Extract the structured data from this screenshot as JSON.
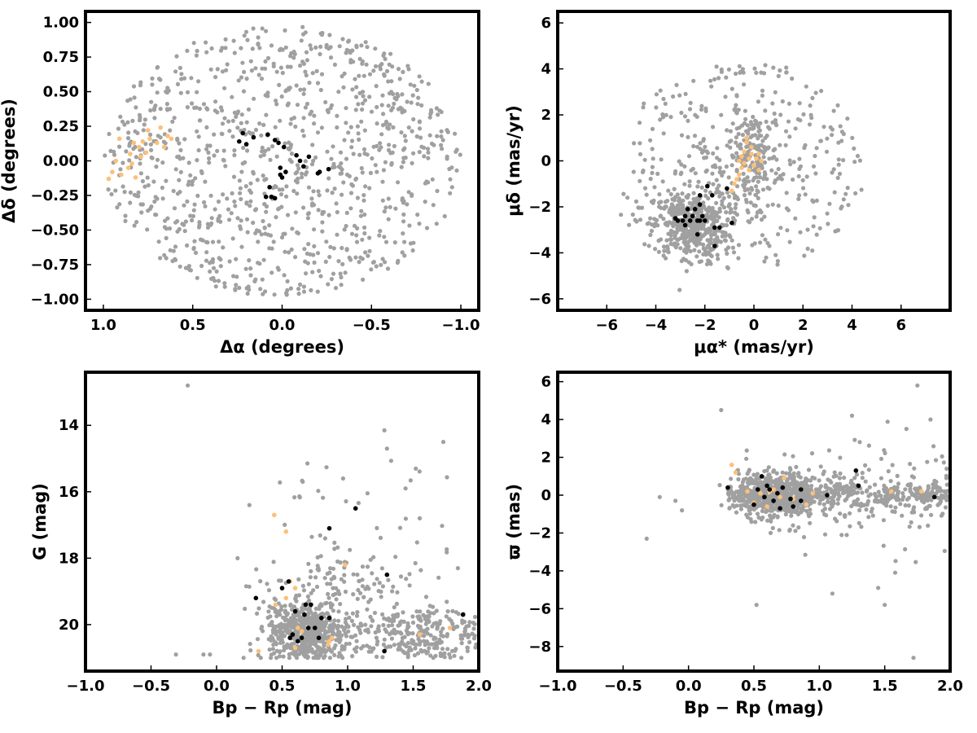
{
  "colors": {
    "field": "#a0a0a0",
    "orange": "#fcc07a",
    "black": "#000000"
  },
  "chart_data": [
    {
      "type": "scatter",
      "xlabel": "Δα (degrees)",
      "ylabel": "Δδ (degrees)",
      "xlim": [
        1.1,
        -1.1
      ],
      "ylim": [
        -1.08,
        1.08
      ],
      "xticks": [
        1.0,
        0.5,
        0.0,
        -0.5,
        -1.0
      ],
      "xtick_labels": [
        "1.0",
        "0.5",
        "0.0",
        "−0.5",
        "−1.0"
      ],
      "yticks": [
        -1.0,
        -0.75,
        -0.5,
        -0.25,
        0.0,
        0.25,
        0.5,
        0.75,
        1.0
      ],
      "ytick_labels": [
        "−1.00",
        "−0.75",
        "−0.50",
        "−0.25",
        "0.00",
        "0.25",
        "0.50",
        "0.75",
        "1.00"
      ],
      "series": [
        {
          "color": "#a0a0a0",
          "description": "field stars: ~1000 points filling a circle of radius 1.0 deg centered at (0,0)",
          "points": []
        },
        {
          "color": "#fcc07a",
          "points": [
            [
              0.97,
              -0.13
            ],
            [
              0.95,
              -0.08
            ],
            [
              0.93,
              0.0
            ],
            [
              0.91,
              0.16
            ],
            [
              0.9,
              -0.1
            ],
            [
              0.86,
              -0.05
            ],
            [
              0.85,
              0.05
            ],
            [
              0.84,
              -0.02
            ],
            [
              0.83,
              0.13
            ],
            [
              0.82,
              -0.12
            ],
            [
              0.8,
              0.1
            ],
            [
              0.79,
              0.03
            ],
            [
              0.78,
              0.14
            ],
            [
              0.76,
              0.06
            ],
            [
              0.75,
              0.22
            ],
            [
              0.74,
              0.16
            ],
            [
              0.7,
              0.13
            ],
            [
              0.68,
              0.24
            ],
            [
              0.66,
              0.1
            ],
            [
              0.64,
              0.18
            ],
            [
              0.62,
              0.16
            ]
          ]
        },
        {
          "color": "#000000",
          "points": [
            [
              0.24,
              0.14
            ],
            [
              0.22,
              0.2
            ],
            [
              0.2,
              0.12
            ],
            [
              0.16,
              0.17
            ],
            [
              0.08,
              0.19
            ],
            [
              0.04,
              0.15
            ],
            [
              0.02,
              0.13
            ],
            [
              0.01,
              -0.05
            ],
            [
              0.01,
              -0.1
            ],
            [
              0.0,
              -0.12
            ],
            [
              -0.01,
              0.1
            ],
            [
              -0.02,
              -0.08
            ],
            [
              -0.08,
              0.04
            ],
            [
              -0.1,
              0.0
            ],
            [
              -0.12,
              -0.04
            ],
            [
              -0.15,
              0.03
            ],
            [
              -0.2,
              -0.09
            ],
            [
              -0.21,
              -0.08
            ],
            [
              -0.26,
              -0.06
            ],
            [
              0.07,
              -0.19
            ],
            [
              0.09,
              -0.26
            ],
            [
              0.06,
              -0.26
            ],
            [
              0.04,
              -0.27
            ]
          ]
        }
      ]
    },
    {
      "type": "scatter",
      "xlabel": "μα* (mas/yr)",
      "ylabel": "μδ (mas/yr)",
      "xlim": [
        -8,
        8
      ],
      "ylim": [
        -6.5,
        6.5
      ],
      "xticks": [
        -6,
        -4,
        -2,
        0,
        2,
        4,
        6
      ],
      "xtick_labels": [
        "−6",
        "−4",
        "−2",
        "0",
        "2",
        "4",
        "6"
      ],
      "yticks": [
        -6,
        -4,
        -2,
        0,
        2,
        4,
        6
      ],
      "ytick_labels": [
        "−6",
        "−4",
        "−2",
        "0",
        "2",
        "4",
        "6"
      ],
      "series": [
        {
          "color": "#a0a0a0",
          "description": "field stars: dense clump near (-2.5,-2.8), secondary clump near (0,0), broad spread from -5 to 5 in x and -4.8 to 4.6 in y",
          "points": []
        },
        {
          "color": "#fcc07a",
          "points": [
            [
              -0.9,
              -1.3
            ],
            [
              -0.8,
              -1.0
            ],
            [
              -0.7,
              -0.8
            ],
            [
              -0.6,
              -0.6
            ],
            [
              -0.5,
              -0.3
            ],
            [
              -0.5,
              0.2
            ],
            [
              -0.4,
              -0.1
            ],
            [
              -0.4,
              0.4
            ],
            [
              -0.3,
              0.8
            ],
            [
              -0.3,
              1.0
            ],
            [
              -0.2,
              0.1
            ],
            [
              -0.2,
              -0.4
            ],
            [
              -0.1,
              0.3
            ],
            [
              0.0,
              -0.2
            ],
            [
              0.1,
              0.1
            ],
            [
              0.2,
              -0.4
            ],
            [
              0.3,
              0.0
            ],
            [
              -0.6,
              0.0
            ],
            [
              -0.1,
              0.6
            ],
            [
              0.2,
              0.3
            ]
          ]
        },
        {
          "color": "#000000",
          "points": [
            [
              -3.2,
              -2.5
            ],
            [
              -3.1,
              -2.6
            ],
            [
              -2.9,
              -2.6
            ],
            [
              -2.8,
              -2.8
            ],
            [
              -2.7,
              -2.1
            ],
            [
              -2.6,
              -2.6
            ],
            [
              -2.5,
              -2.4
            ],
            [
              -2.4,
              -2.1
            ],
            [
              -2.3,
              -2.6
            ],
            [
              -2.3,
              -3.2
            ],
            [
              -2.2,
              -2.6
            ],
            [
              -2.2,
              -1.9
            ],
            [
              -2.2,
              -1.5
            ],
            [
              -2.1,
              -2.4
            ],
            [
              -2.0,
              -2.6
            ],
            [
              -1.9,
              -1.1
            ],
            [
              -1.7,
              -1.5
            ],
            [
              -1.6,
              -2.9
            ],
            [
              -1.4,
              -2.9
            ],
            [
              -1.6,
              -3.7
            ],
            [
              -1.1,
              -1.2
            ],
            [
              -0.9,
              -2.7
            ],
            [
              -2.8,
              -2.4
            ]
          ]
        }
      ]
    },
    {
      "type": "scatter",
      "xlabel": "Bp − Rp (mag)",
      "ylabel": "G (mag)",
      "xlim": [
        -1.0,
        2.0
      ],
      "ylim": [
        21.4,
        12.4
      ],
      "xticks": [
        -1.0,
        -0.5,
        0.0,
        0.5,
        1.0,
        1.5,
        2.0
      ],
      "xtick_labels": [
        "−1.0",
        "−0.5",
        "0.0",
        "0.5",
        "1.0",
        "1.5",
        "2.0"
      ],
      "yticks": [
        14,
        16,
        18,
        20
      ],
      "ytick_labels": [
        "14",
        "16",
        "18",
        "20"
      ],
      "series": [
        {
          "color": "#a0a0a0",
          "description": "field stars: dense cluster near Bp-Rp 0.6-0.8, G 19.3-21; many faint stars up to G 21 across 0.2-2.0; sparse bright stars down to G 12.8",
          "points": []
        },
        {
          "color": "#fcc07a",
          "points": [
            [
              0.32,
              20.8
            ],
            [
              0.45,
              19.4
            ],
            [
              0.53,
              19.2
            ],
            [
              0.56,
              18.7
            ],
            [
              0.6,
              20.7
            ],
            [
              0.62,
              20.1
            ],
            [
              0.65,
              20.2
            ],
            [
              0.7,
              20.1
            ],
            [
              0.85,
              20.6
            ],
            [
              0.86,
              20.5
            ],
            [
              0.98,
              18.2
            ],
            [
              0.53,
              17.2
            ],
            [
              0.44,
              16.7
            ],
            [
              1.55,
              20.3
            ],
            [
              1.78,
              20.1
            ],
            [
              0.88,
              20.4
            ],
            [
              0.6,
              18.9
            ]
          ]
        },
        {
          "color": "#000000",
          "points": [
            [
              0.3,
              19.2
            ],
            [
              0.5,
              18.9
            ],
            [
              0.55,
              18.7
            ],
            [
              0.56,
              20.4
            ],
            [
              0.58,
              20.3
            ],
            [
              0.6,
              19.6
            ],
            [
              0.62,
              20.5
            ],
            [
              0.65,
              20.4
            ],
            [
              0.67,
              19.7
            ],
            [
              0.68,
              19.4
            ],
            [
              0.7,
              20.1
            ],
            [
              0.72,
              19.4
            ],
            [
              0.78,
              20.4
            ],
            [
              0.8,
              19.8
            ],
            [
              0.86,
              19.8
            ],
            [
              0.86,
              17.1
            ],
            [
              1.06,
              16.5
            ],
            [
              1.28,
              20.8
            ],
            [
              1.3,
              18.5
            ],
            [
              1.88,
              19.7
            ],
            [
              2.0,
              20.7
            ],
            [
              0.75,
              20.1
            ]
          ]
        }
      ]
    },
    {
      "type": "scatter",
      "xlabel": "Bp − Rp (mag)",
      "ylabel": "ϖ (mas)",
      "xlim": [
        -1.0,
        2.0
      ],
      "ylim": [
        -9.3,
        6.5
      ],
      "xticks": [
        -1.0,
        -0.5,
        0.0,
        0.5,
        1.0,
        1.5,
        2.0
      ],
      "xtick_labels": [
        "−1.0",
        "−0.5",
        "0.0",
        "0.5",
        "1.0",
        "1.5",
        "2.0"
      ],
      "yticks": [
        -8,
        -6,
        -4,
        -2,
        0,
        2,
        4,
        6
      ],
      "ytick_labels": [
        "−8",
        "−6",
        "−4",
        "−2",
        "0",
        "2",
        "4",
        "6"
      ],
      "series": [
        {
          "color": "#a0a0a0",
          "description": "field stars: dense band near parallax 0 for Bp-Rp 0.3-2.0, scatter -6 to 5.8 mas",
          "points": []
        },
        {
          "color": "#fcc07a",
          "points": [
            [
              0.33,
              1.6
            ],
            [
              0.36,
              1.2
            ],
            [
              0.45,
              0.2
            ],
            [
              0.5,
              -0.4
            ],
            [
              0.55,
              0.1
            ],
            [
              0.6,
              -0.6
            ],
            [
              0.62,
              0.2
            ],
            [
              0.65,
              0.3
            ],
            [
              0.7,
              -0.1
            ],
            [
              0.73,
              0.9
            ],
            [
              0.8,
              -0.2
            ],
            [
              0.86,
              0.3
            ],
            [
              0.95,
              0.1
            ],
            [
              1.55,
              0.2
            ],
            [
              1.78,
              0.2
            ],
            [
              0.9,
              -0.5
            ]
          ]
        },
        {
          "color": "#000000",
          "points": [
            [
              0.3,
              0.4
            ],
            [
              0.5,
              -0.5
            ],
            [
              0.53,
              0.3
            ],
            [
              0.56,
              1.0
            ],
            [
              0.58,
              -0.1
            ],
            [
              0.6,
              0.5
            ],
            [
              0.62,
              0.3
            ],
            [
              0.65,
              -0.3
            ],
            [
              0.68,
              0.1
            ],
            [
              0.7,
              -0.7
            ],
            [
              0.72,
              0.4
            ],
            [
              0.78,
              -0.2
            ],
            [
              0.8,
              -0.6
            ],
            [
              0.86,
              -0.3
            ],
            [
              0.86,
              0.3
            ],
            [
              1.06,
              0.0
            ],
            [
              1.28,
              1.3
            ],
            [
              1.3,
              0.5
            ],
            [
              1.88,
              -0.1
            ],
            [
              2.0,
              0.3
            ]
          ]
        }
      ]
    }
  ]
}
